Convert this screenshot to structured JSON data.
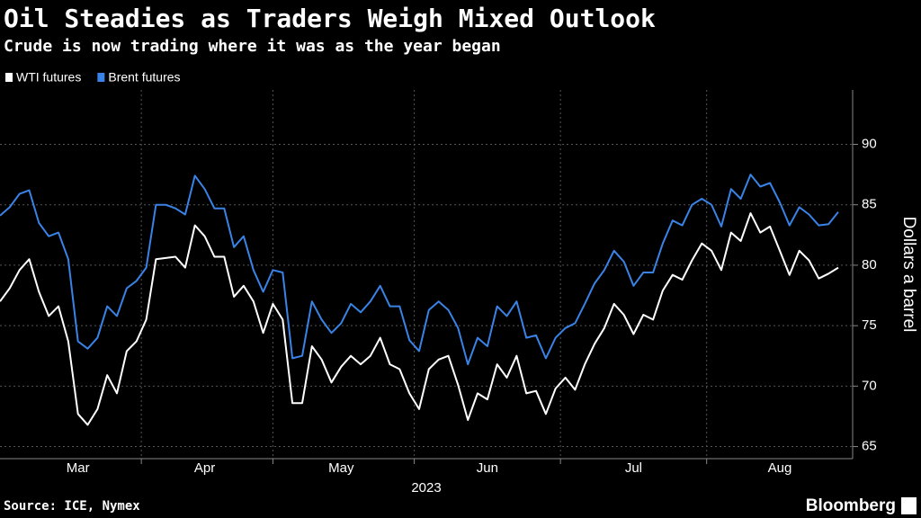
{
  "chart_data": {
    "type": "line",
    "title": "Oil Steadies as Traders Weigh Mixed Outlook",
    "subtitle": "Crude is now trading where it was as the year began",
    "ylabel": "Dollars a barrel",
    "xlabel": "2023",
    "source": "Source: ICE, Nymex",
    "brand": "Bloomberg",
    "categories": [
      null,
      null,
      null,
      null,
      null,
      null,
      null,
      null,
      "Mar",
      null,
      null,
      null,
      null,
      null,
      null,
      null,
      null,
      null,
      null,
      null,
      null,
      "Apr",
      null,
      null,
      null,
      null,
      null,
      null,
      null,
      null,
      null,
      null,
      null,
      null,
      null,
      "May",
      null,
      null,
      null,
      null,
      null,
      null,
      null,
      null,
      null,
      null,
      null,
      null,
      null,
      null,
      "Jun",
      null,
      null,
      null,
      null,
      null,
      null,
      null,
      null,
      null,
      null,
      null,
      null,
      null,
      null,
      "Jul",
      null,
      null,
      null,
      null,
      null,
      null,
      null,
      null,
      null,
      null,
      null,
      null,
      null,
      null,
      "Aug",
      null,
      null,
      null,
      null,
      null,
      null
    ],
    "series": [
      {
        "name": "WTI futures",
        "color": "#ffffff",
        "values": [
          77.0,
          78.1,
          79.6,
          80.5,
          77.8,
          75.8,
          76.6,
          73.7,
          67.7,
          66.8,
          68.1,
          70.9,
          69.4,
          72.9,
          73.7,
          75.5,
          80.5,
          80.6,
          80.7,
          79.8,
          83.3,
          82.4,
          80.7,
          80.7,
          77.4,
          78.3,
          77.0,
          74.4,
          76.8,
          75.5,
          68.6,
          68.6,
          73.3,
          72.2,
          70.3,
          71.6,
          72.5,
          71.8,
          72.5,
          74.0,
          71.8,
          71.4,
          69.4,
          68.1,
          71.4,
          72.2,
          72.5,
          70.1,
          67.2,
          69.4,
          68.9,
          71.8,
          70.7,
          72.5,
          69.4,
          69.6,
          67.7,
          69.8,
          70.7,
          69.7,
          71.8,
          73.5,
          74.8,
          76.8,
          75.9,
          74.3,
          75.9,
          75.5,
          77.9,
          79.2,
          78.8,
          80.4,
          81.8,
          81.2,
          79.6,
          82.7,
          82.0,
          84.3,
          82.7,
          83.2,
          81.2,
          79.2,
          81.2,
          80.4,
          78.9,
          79.3,
          79.8
        ]
      },
      {
        "name": "Brent futures",
        "color": "#3a83e6",
        "values": [
          84.1,
          84.8,
          85.9,
          86.2,
          83.5,
          82.4,
          82.7,
          80.5,
          73.7,
          73.1,
          74.0,
          76.6,
          75.8,
          78.1,
          78.7,
          79.8,
          85.0,
          85.0,
          84.7,
          84.2,
          87.4,
          86.3,
          84.7,
          84.7,
          81.5,
          82.4,
          79.6,
          77.8,
          79.6,
          79.4,
          72.3,
          72.5,
          77.0,
          75.5,
          74.4,
          75.2,
          76.8,
          76.1,
          77.0,
          78.3,
          76.6,
          76.6,
          73.8,
          72.9,
          76.3,
          77.0,
          76.3,
          74.8,
          71.8,
          74.0,
          73.3,
          76.6,
          75.8,
          77.0,
          74.0,
          74.2,
          72.3,
          74.0,
          74.8,
          75.2,
          76.8,
          78.5,
          79.6,
          81.2,
          80.3,
          78.3,
          79.4,
          79.4,
          81.8,
          83.7,
          83.3,
          85.0,
          85.5,
          85.0,
          83.2,
          86.3,
          85.5,
          87.5,
          86.5,
          86.8,
          85.2,
          83.3,
          84.8,
          84.2,
          83.3,
          83.4,
          84.4
        ]
      }
    ],
    "ylim": [
      64,
      94.5
    ],
    "yticks": [
      65,
      70,
      75,
      80,
      85,
      90
    ],
    "grid": true
  }
}
